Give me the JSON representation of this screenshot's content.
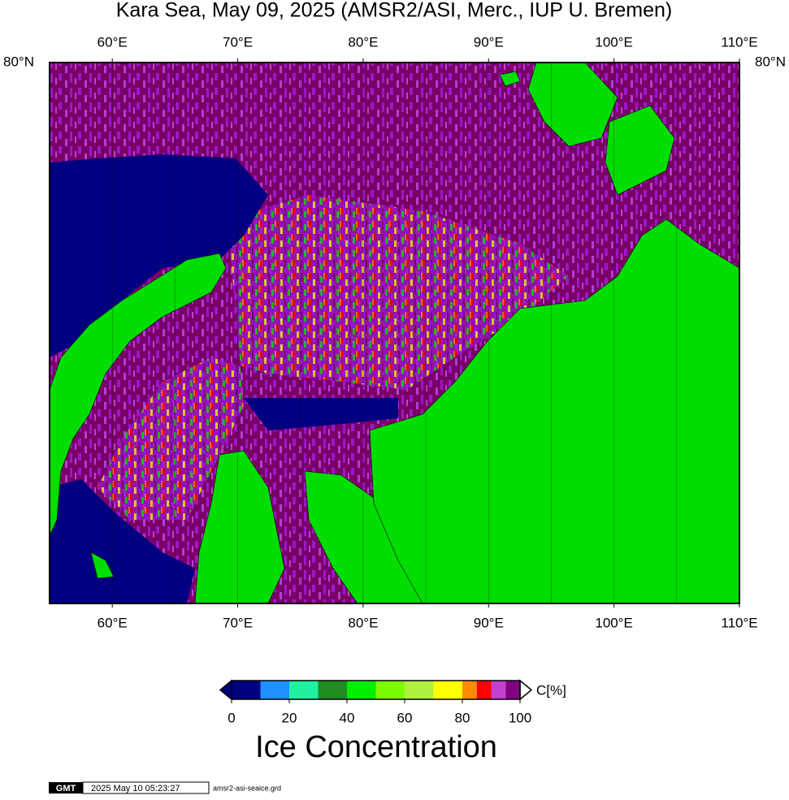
{
  "title": "Kara Sea, May 09, 2025 (AMSR2/ASI, Merc., IUP U. Bremen)",
  "map": {
    "lonlim": [
      55,
      110
    ],
    "lon_ticks": [
      {
        "value": 60,
        "label": "60°E"
      },
      {
        "value": 70,
        "label": "70°E"
      },
      {
        "value": 80,
        "label": "80°E"
      },
      {
        "value": 90,
        "label": "90°E"
      },
      {
        "value": 100,
        "label": "100°E"
      },
      {
        "value": 110,
        "label": "110°E"
      }
    ],
    "lat_ticks": [
      {
        "value": 80,
        "label": "80°N"
      }
    ]
  },
  "colorbar": {
    "bounds": [
      0,
      10,
      20,
      30,
      40,
      50,
      60,
      70,
      80,
      85,
      90,
      95,
      100
    ],
    "colors": [
      "#000080",
      "#1e90ff",
      "#20f0a0",
      "#228b22",
      "#00ee00",
      "#7cfc00",
      "#b0f040",
      "#ffff00",
      "#ff8c00",
      "#ff0000",
      "#c040d0",
      "#800080"
    ],
    "ticks": [
      0,
      20,
      40,
      60,
      80,
      100
    ],
    "unit": "C[%]",
    "label": "Ice Concentration"
  },
  "footer": {
    "logo": "GMT",
    "timestamp": "2025 May 10 05:23:27",
    "file": "amsr2-asi-seaice.grd"
  }
}
